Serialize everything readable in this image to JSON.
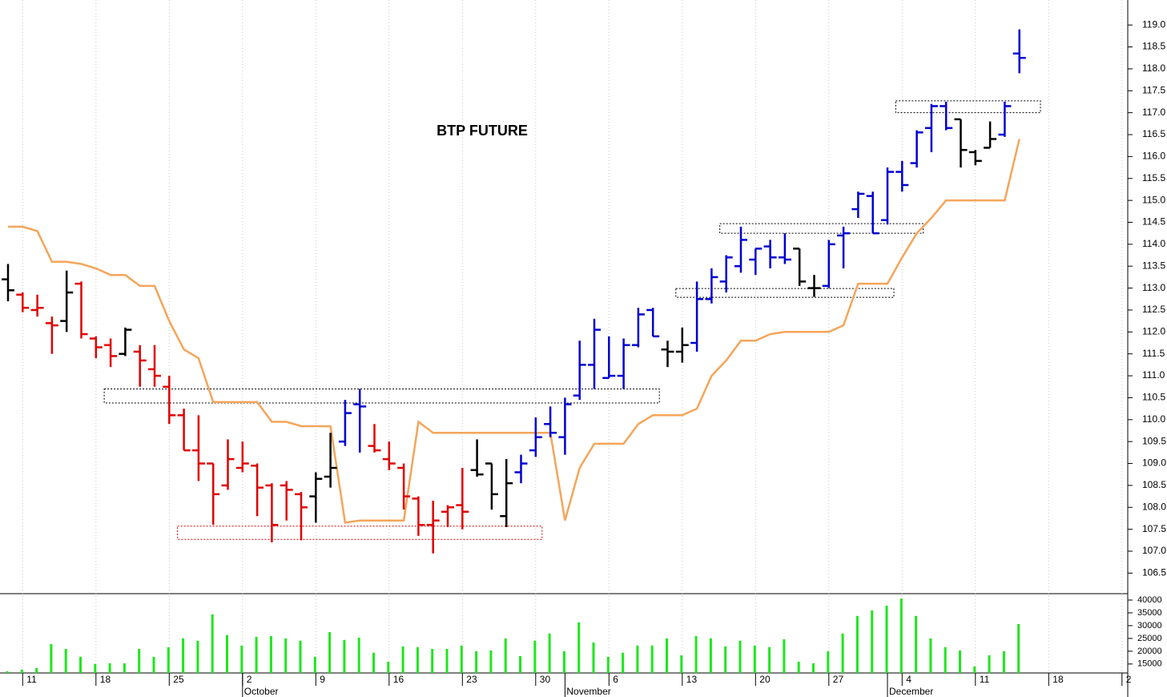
{
  "chart_data": [
    {
      "type": "ohlc",
      "title": "BTP FUTURE",
      "categories": [
        null,
        "11",
        null,
        null,
        null,
        null,
        "18",
        null,
        null,
        null,
        null,
        "25",
        null,
        null,
        null,
        null,
        "2",
        null,
        null,
        null,
        null,
        "9",
        null,
        null,
        null,
        null,
        "16",
        null,
        null,
        null,
        null,
        "23",
        null,
        null,
        null,
        null,
        "30",
        null,
        null,
        null,
        null,
        "6",
        null,
        null,
        null,
        null,
        "13",
        null,
        null,
        null,
        null,
        "20",
        null,
        null,
        null,
        null,
        "27",
        null,
        null,
        null,
        null,
        "4",
        null,
        null,
        null,
        null,
        "11",
        null,
        null,
        null,
        null,
        "18",
        null,
        null,
        null,
        null,
        "2"
      ],
      "month_labels": [
        null,
        null,
        null,
        null,
        null,
        null,
        null,
        null,
        null,
        null,
        null,
        null,
        null,
        null,
        null,
        null,
        "October",
        null,
        null,
        null,
        null,
        null,
        null,
        null,
        null,
        null,
        null,
        null,
        null,
        null,
        null,
        null,
        null,
        null,
        null,
        null,
        null,
        null,
        "November",
        null,
        null,
        null,
        null,
        null,
        null,
        null,
        null,
        null,
        null,
        null,
        null,
        null,
        null,
        null,
        null,
        null,
        null,
        null,
        null,
        null,
        "December",
        null,
        null,
        null,
        null,
        null,
        null,
        null,
        null,
        null,
        null,
        null,
        null,
        null,
        null,
        null,
        null
      ],
      "open": [
        113.2,
        112.85,
        112.5,
        112.2,
        112.25,
        113.1,
        111.85,
        111.7,
        111.5,
        111.55,
        111.15,
        110.75,
        110.1,
        109.3,
        109.0,
        108.5,
        108.9,
        108.95,
        108.5,
        108.5,
        108.3,
        108.25,
        108.7,
        109.5,
        110.35,
        109.4,
        109.1,
        108.9,
        108.2,
        107.6,
        107.9,
        108.05,
        108.85,
        109.0,
        107.8,
        108.8,
        109.3,
        109.9,
        109.6,
        110.55,
        111.25,
        110.95,
        111.0,
        111.7,
        112.5,
        111.6,
        111.55,
        111.75,
        112.75,
        113.15,
        113.5,
        113.65,
        113.95,
        113.7,
        113.9,
        113.0,
        113.05,
        114.2,
        114.8,
        115.1,
        114.55,
        115.65,
        115.85,
        116.65,
        117.15,
        116.85,
        116.1,
        116.2,
        116.5,
        118.35,
        null,
        null,
        null,
        null,
        null,
        null,
        null
      ],
      "high": [
        113.55,
        112.9,
        112.85,
        112.35,
        113.4,
        113.15,
        111.9,
        111.85,
        112.1,
        111.7,
        111.7,
        111.0,
        110.25,
        110.1,
        109.0,
        109.55,
        109.5,
        109.0,
        108.55,
        108.6,
        108.35,
        108.8,
        109.7,
        110.45,
        110.7,
        109.9,
        109.5,
        109.0,
        108.25,
        108.15,
        108.05,
        108.9,
        109.55,
        109.0,
        109.1,
        109.2,
        110.05,
        110.3,
        110.5,
        111.8,
        112.3,
        111.9,
        111.85,
        112.55,
        112.55,
        111.8,
        112.1,
        113.15,
        113.45,
        113.75,
        114.4,
        113.9,
        114.1,
        114.25,
        113.9,
        113.3,
        114.1,
        114.4,
        115.2,
        115.2,
        115.75,
        115.9,
        116.6,
        117.2,
        117.25,
        116.85,
        116.15,
        116.8,
        117.25,
        118.9,
        null,
        null,
        null,
        null,
        null,
        null,
        null
      ],
      "low": [
        112.7,
        112.45,
        112.35,
        111.5,
        112.0,
        111.85,
        111.4,
        111.2,
        111.45,
        110.75,
        110.75,
        109.9,
        109.3,
        108.6,
        107.6,
        108.4,
        108.8,
        107.8,
        107.2,
        107.7,
        107.25,
        107.65,
        108.45,
        109.4,
        109.25,
        109.25,
        108.85,
        107.95,
        107.35,
        106.95,
        107.55,
        107.5,
        108.7,
        107.95,
        107.55,
        108.55,
        109.15,
        109.6,
        109.2,
        110.45,
        110.7,
        110.95,
        110.7,
        111.65,
        111.9,
        111.2,
        111.3,
        111.55,
        112.65,
        112.9,
        113.35,
        113.3,
        113.45,
        113.55,
        113.05,
        112.8,
        113.0,
        113.45,
        114.6,
        114.25,
        114.45,
        115.2,
        115.75,
        116.1,
        116.6,
        115.75,
        115.8,
        116.2,
        116.45,
        117.9,
        null,
        null,
        null,
        null,
        null,
        null,
        null
      ],
      "close": [
        112.95,
        112.55,
        112.55,
        112.15,
        112.9,
        111.95,
        111.65,
        111.45,
        112.05,
        111.35,
        111.0,
        110.1,
        109.3,
        109.0,
        108.3,
        109.1,
        109.0,
        108.45,
        107.6,
        108.4,
        108.0,
        108.65,
        108.9,
        110.15,
        110.3,
        109.3,
        109.0,
        108.25,
        107.6,
        107.7,
        108.0,
        107.9,
        108.75,
        108.3,
        108.55,
        109.0,
        109.6,
        109.7,
        110.35,
        111.25,
        112.05,
        111.0,
        111.7,
        112.4,
        111.9,
        111.55,
        111.7,
        112.75,
        113.25,
        113.7,
        114.1,
        113.9,
        113.7,
        113.65,
        113.15,
        113.0,
        114.0,
        114.25,
        115.15,
        114.25,
        115.65,
        115.35,
        116.55,
        117.15,
        116.65,
        116.15,
        115.9,
        116.4,
        117.15,
        118.25,
        null,
        null,
        null,
        null,
        null,
        null,
        null
      ],
      "bar_colors": [
        "#000000",
        "#e00000",
        "#e00000",
        "#e00000",
        "#000000",
        "#e00000",
        "#e00000",
        "#e00000",
        "#000000",
        "#e00000",
        "#e00000",
        "#e00000",
        "#e00000",
        "#e00000",
        "#e00000",
        "#e00000",
        "#e00000",
        "#e00000",
        "#e00000",
        "#e00000",
        "#e00000",
        "#000000",
        "#000000",
        "#0000d0",
        "#0000d0",
        "#e00000",
        "#e00000",
        "#e00000",
        "#e00000",
        "#e00000",
        "#e00000",
        "#e00000",
        "#000000",
        "#000000",
        "#000000",
        "#0000d0",
        "#0000d0",
        "#0000d0",
        "#0000d0",
        "#0000d0",
        "#0000d0",
        "#0000d0",
        "#0000d0",
        "#0000d0",
        "#0000d0",
        "#000000",
        "#000000",
        "#0000d0",
        "#0000d0",
        "#0000d0",
        "#0000d0",
        "#0000d0",
        "#0000d0",
        "#0000d0",
        "#000000",
        "#000000",
        "#0000d0",
        "#0000d0",
        "#0000d0",
        "#0000d0",
        "#0000d0",
        "#0000d0",
        "#0000d0",
        "#0000d0",
        "#0000d0",
        "#000000",
        "#000000",
        "#000000",
        "#0000d0",
        "#0000d0",
        null,
        null,
        null,
        null,
        null,
        null,
        null
      ],
      "overlay": {
        "type": "line",
        "color": "#f5a55a",
        "values": [
          114.4,
          114.4,
          114.3,
          113.6,
          113.6,
          113.55,
          113.45,
          113.3,
          113.3,
          113.05,
          113.05,
          112.25,
          111.6,
          111.4,
          110.4,
          110.4,
          110.4,
          110.4,
          109.95,
          109.95,
          109.85,
          109.85,
          109.85,
          107.65,
          107.7,
          107.7,
          107.7,
          107.7,
          109.95,
          109.7,
          109.7,
          109.7,
          109.7,
          109.7,
          109.7,
          109.7,
          109.7,
          109.7,
          107.7,
          108.9,
          109.45,
          109.45,
          109.45,
          109.9,
          110.1,
          110.1,
          110.1,
          110.25,
          111.0,
          111.35,
          111.8,
          111.8,
          111.95,
          112.0,
          112.0,
          112.0,
          112.0,
          112.15,
          113.1,
          113.1,
          113.1,
          113.7,
          114.25,
          114.6,
          115.0,
          115.0,
          115.0,
          115.0,
          115.0,
          116.4,
          null,
          null,
          null,
          null,
          null,
          null,
          null
        ]
      },
      "zones": [
        {
          "start": 7,
          "end": 44,
          "low": 110.38,
          "high": 110.7,
          "color": "#000000"
        },
        {
          "start": 12,
          "end": 36,
          "low": 107.27,
          "high": 107.57,
          "color": "#e00000"
        },
        {
          "start": 46,
          "end": 60,
          "low": 112.79,
          "high": 112.99,
          "color": "#000000"
        },
        {
          "start": 49,
          "end": 62,
          "low": 114.25,
          "high": 114.47,
          "color": "#000000"
        },
        {
          "start": 61,
          "end": 70,
          "low": 117.0,
          "high": 117.27,
          "color": "#000000"
        }
      ],
      "ylim": [
        106.05,
        119.57
      ],
      "yticks": [
        106.5,
        {
          "value": 107,
          "label": "107.0"
        },
        107.5,
        {
          "value": 108,
          "label": "108.0"
        },
        108.5,
        {
          "value": 109,
          "label": "109.0"
        },
        109.5,
        {
          "value": 110,
          "label": "110.0"
        },
        110.5,
        {
          "value": 111,
          "label": "111.0"
        },
        111.5,
        {
          "value": 112,
          "label": "112.0"
        },
        112.5,
        {
          "value": 113,
          "label": "113.0"
        },
        113.5,
        {
          "value": 114,
          "label": "114.0"
        },
        114.5,
        {
          "value": 115,
          "label": "115.0"
        },
        115.5,
        {
          "value": 116,
          "label": "116.0"
        },
        116.5,
        {
          "value": 117,
          "label": "117.0"
        },
        117.5,
        {
          "value": 118,
          "label": "118.0"
        },
        118.5,
        {
          "value": 119,
          "label": "119.0"
        }
      ],
      "grid": true
    },
    {
      "type": "bar",
      "color": "#1ee61e",
      "values": [
        12200,
        12800,
        13400,
        22800,
        20900,
        17800,
        15000,
        15300,
        15300,
        20900,
        17800,
        21600,
        25000,
        24100,
        34400,
        26300,
        22200,
        25600,
        25900,
        25000,
        24100,
        17800,
        27500,
        24400,
        25300,
        19400,
        15900,
        21900,
        21600,
        20900,
        20900,
        22200,
        20000,
        20300,
        25000,
        18100,
        24100,
        26900,
        20000,
        31300,
        23400,
        17800,
        19400,
        22200,
        22200,
        25000,
        18400,
        25900,
        25000,
        21900,
        24100,
        22200,
        21600,
        24700,
        15900,
        15300,
        20000,
        26900,
        33800,
        35900,
        37800,
        40600,
        33800,
        25000,
        21600,
        20300,
        14100,
        18400,
        20000,
        30600,
        null,
        null,
        null,
        null,
        null,
        null,
        null
      ],
      "ylim": [
        11500,
        42500
      ],
      "yticks": [
        15000,
        20000,
        25000,
        30000,
        35000,
        40000
      ]
    }
  ]
}
